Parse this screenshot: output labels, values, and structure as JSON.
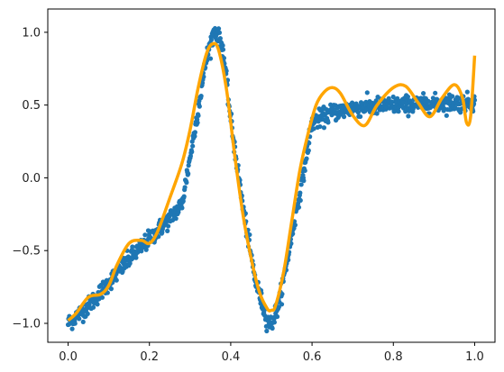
{
  "chart_data": {
    "type": "scatter",
    "title": "",
    "xlabel": "",
    "ylabel": "",
    "xlim": [
      -0.05,
      1.05
    ],
    "ylim": [
      -1.13,
      1.16
    ],
    "grid": false,
    "legend": "none",
    "x_ticks": [
      0.0,
      0.2,
      0.4,
      0.6,
      0.8,
      1.0
    ],
    "x_tick_labels": [
      "0.0",
      "0.2",
      "0.4",
      "0.6",
      "0.8",
      "1.0"
    ],
    "y_ticks": [
      -1.0,
      -0.5,
      0.0,
      0.5,
      1.0
    ],
    "y_tick_labels": [
      "−1.0",
      "−0.5",
      "0.0",
      "0.5",
      "1.0"
    ],
    "series": [
      {
        "kind": "scatter",
        "color": "#1f77b4",
        "point_count": 1000,
        "noise_sd": 0.03,
        "profile_x": [
          0.0,
          0.05,
          0.1,
          0.15,
          0.2,
          0.25,
          0.28,
          0.31,
          0.34,
          0.36,
          0.38,
          0.4,
          0.43,
          0.46,
          0.49,
          0.5,
          0.52,
          0.55,
          0.58,
          0.6,
          0.65,
          0.7,
          0.8,
          0.9,
          1.0
        ],
        "profile_y": [
          -1.0,
          -0.88,
          -0.72,
          -0.56,
          -0.42,
          -0.28,
          -0.18,
          0.3,
          0.82,
          1.02,
          0.9,
          0.4,
          -0.2,
          -0.7,
          -0.98,
          -1.01,
          -0.85,
          -0.4,
          0.05,
          0.38,
          0.45,
          0.48,
          0.5,
          0.51,
          0.52
        ]
      },
      {
        "kind": "line",
        "color": "#ffa500",
        "x": [
          0.0,
          0.02,
          0.05,
          0.08,
          0.1,
          0.12,
          0.15,
          0.18,
          0.2,
          0.22,
          0.25,
          0.28,
          0.3,
          0.32,
          0.34,
          0.355,
          0.37,
          0.39,
          0.41,
          0.43,
          0.45,
          0.47,
          0.49,
          0.5,
          0.51,
          0.53,
          0.55,
          0.57,
          0.59,
          0.61,
          0.63,
          0.65,
          0.67,
          0.7,
          0.73,
          0.76,
          0.8,
          0.83,
          0.86,
          0.89,
          0.92,
          0.95,
          0.97,
          0.98,
          0.99,
          1.0
        ],
        "y": [
          -0.98,
          -0.93,
          -0.82,
          -0.8,
          -0.74,
          -0.6,
          -0.45,
          -0.43,
          -0.45,
          -0.37,
          -0.14,
          0.1,
          0.33,
          0.62,
          0.85,
          0.92,
          0.88,
          0.6,
          0.15,
          -0.25,
          -0.55,
          -0.78,
          -0.9,
          -0.91,
          -0.88,
          -0.65,
          -0.3,
          0.05,
          0.3,
          0.5,
          0.59,
          0.62,
          0.58,
          0.43,
          0.36,
          0.5,
          0.62,
          0.63,
          0.52,
          0.42,
          0.55,
          0.64,
          0.55,
          0.38,
          0.42,
          0.84
        ]
      }
    ]
  }
}
